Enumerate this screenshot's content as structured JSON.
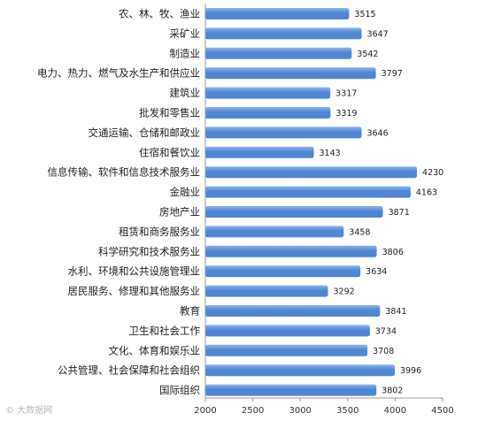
{
  "chart_data": {
    "type": "bar",
    "orientation": "horizontal",
    "categories": [
      "农、林、牧、渔业",
      "采矿业",
      "制造业",
      "电力、热力、燃气及水生产和供应业",
      "建筑业",
      "批发和零售业",
      "交通运输、仓储和邮政业",
      "住宿和餐饮业",
      "信息传输、软件和信息技术服务业",
      "金融业",
      "房地产业",
      "租赁和商务服务业",
      "科学研究和技术服务业",
      "水利、环境和公共设施管理业",
      "居民服务、修理和其他服务业",
      "教育",
      "卫生和社会工作",
      "文化、体育和娱乐业",
      "公共管理、社会保障和社会组织",
      "国际组织"
    ],
    "values": [
      3515,
      3647,
      3542,
      3797,
      3317,
      3319,
      3646,
      3143,
      4230,
      4163,
      3871,
      3458,
      3806,
      3634,
      3292,
      3841,
      3734,
      3708,
      3996,
      3802
    ],
    "xlim": [
      2000,
      4500
    ],
    "xticks": [
      "2000",
      "2500",
      "3000",
      "3500",
      "4000",
      "4500"
    ],
    "bar_color": "#4f86d4",
    "bar_color_light": "#8db4ea",
    "grid": false,
    "legend": "none",
    "title": "",
    "xlabel": "",
    "ylabel": ""
  },
  "watermark": "© 大数据网"
}
